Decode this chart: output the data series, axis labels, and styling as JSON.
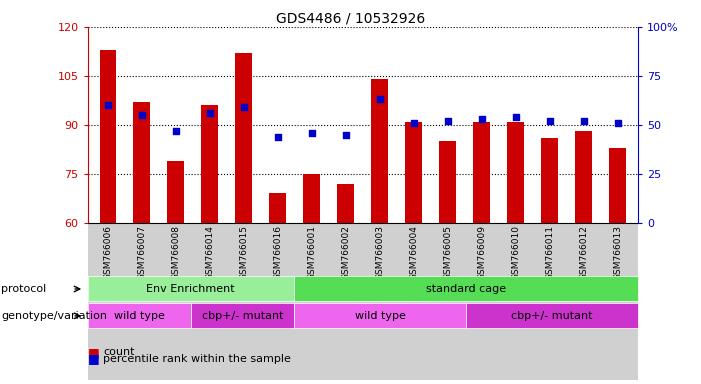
{
  "title": "GDS4486 / 10532926",
  "samples": [
    "GSM766006",
    "GSM766007",
    "GSM766008",
    "GSM766014",
    "GSM766015",
    "GSM766016",
    "GSM766001",
    "GSM766002",
    "GSM766003",
    "GSM766004",
    "GSM766005",
    "GSM766009",
    "GSM766010",
    "GSM766011",
    "GSM766012",
    "GSM766013"
  ],
  "counts": [
    113,
    97,
    79,
    96,
    112,
    69,
    75,
    72,
    104,
    91,
    85,
    91,
    91,
    86,
    88,
    83
  ],
  "percentiles": [
    60,
    55,
    47,
    56,
    59,
    44,
    46,
    45,
    63,
    51,
    52,
    53,
    54,
    52,
    52,
    51
  ],
  "ylim_left": [
    60,
    120
  ],
  "ylim_right": [
    0,
    100
  ],
  "yticks_left": [
    60,
    75,
    90,
    105,
    120
  ],
  "yticks_right": [
    0,
    25,
    50,
    75,
    100
  ],
  "bar_color": "#cc0000",
  "dot_color": "#0000cc",
  "protocol_groups": [
    {
      "label": "Env Enrichment",
      "start": 0,
      "end": 6,
      "color": "#99ee99"
    },
    {
      "label": "standard cage",
      "start": 6,
      "end": 16,
      "color": "#55dd55"
    }
  ],
  "genotype_groups": [
    {
      "label": "wild type",
      "start": 0,
      "end": 3,
      "color": "#ee66ee"
    },
    {
      "label": "cbp+/- mutant",
      "start": 3,
      "end": 6,
      "color": "#cc33cc"
    },
    {
      "label": "wild type",
      "start": 6,
      "end": 11,
      "color": "#ee66ee"
    },
    {
      "label": "cbp+/- mutant",
      "start": 11,
      "end": 16,
      "color": "#cc33cc"
    }
  ],
  "bg_color": "#ffffff",
  "tick_label_color_left": "#cc0000",
  "tick_label_color_right": "#0000cc",
  "bar_width": 0.5,
  "ticklabel_bg": "#d0d0d0"
}
